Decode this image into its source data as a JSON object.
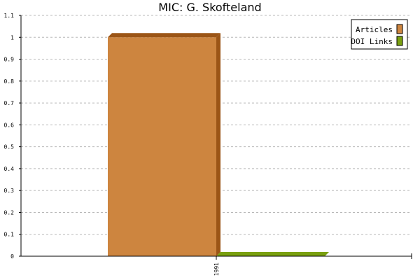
{
  "chart_data": {
    "type": "bar",
    "title": "MIC: G. Skofteland",
    "xlabel": "",
    "ylabel": "",
    "categories": [
      "1991"
    ],
    "series": [
      {
        "name": "Articles",
        "values": [
          1
        ],
        "color": "#cd853f",
        "side_color": "#9b5516"
      },
      {
        "name": "DOI Links",
        "values": [
          0
        ],
        "color": "#7aa010",
        "side_color": "#5a7a08"
      }
    ],
    "ylim": [
      0,
      1.1
    ],
    "yticks": [
      "0",
      "0.1",
      "0.2",
      "0.3",
      "0.4",
      "0.5",
      "0.6",
      "0.7",
      "0.8",
      "0.9",
      "1",
      "1.1"
    ],
    "grid": true,
    "legend": "top-right"
  }
}
